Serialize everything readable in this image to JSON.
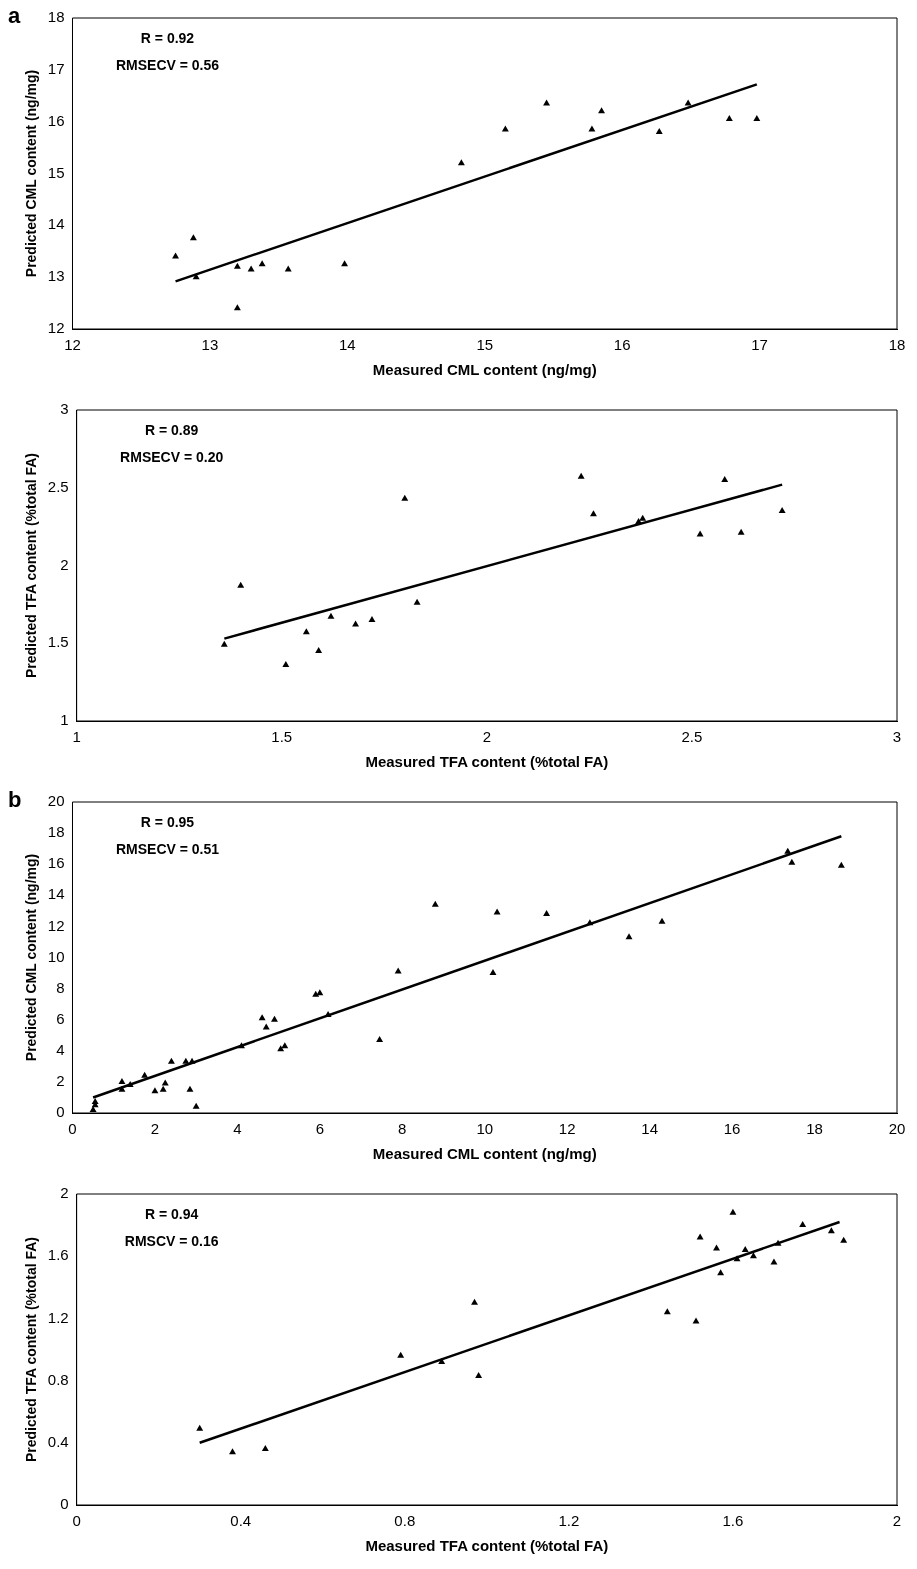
{
  "chart_data": [
    {
      "type": "scatter",
      "title": "a",
      "xlabel": "Measured CML content (ng/mg)",
      "ylabel": "Predicted CML content (ng/mg)",
      "annotations": [
        "R = 0.92",
        "RMSECV = 0.56"
      ],
      "xlim": [
        12,
        18
      ],
      "xticks": [
        12,
        13,
        14,
        15,
        16,
        17,
        18
      ],
      "ylim": [
        12,
        18
      ],
      "yticks": [
        12,
        13,
        14,
        15,
        16,
        17,
        18
      ],
      "grid": false,
      "legend": false,
      "series": [
        {
          "marker": "triangle",
          "color": "#000000",
          "x": [
            12.75,
            12.88,
            12.9,
            13.2,
            13.2,
            13.3,
            13.38,
            13.57,
            13.98,
            14.83,
            15.15,
            15.45,
            15.78,
            15.85,
            16.27,
            16.48,
            16.78,
            16.98
          ],
          "values": [
            13.4,
            13.75,
            13.0,
            13.2,
            12.4,
            13.15,
            13.25,
            13.15,
            13.25,
            15.2,
            15.85,
            16.35,
            15.85,
            16.2,
            15.8,
            16.35,
            16.05,
            16.05
          ]
        },
        {
          "type": "line",
          "marker": "none",
          "color": "#000000",
          "x": [
            12.75,
            16.98
          ],
          "values": [
            12.92,
            16.72
          ]
        }
      ]
    },
    {
      "type": "scatter",
      "xlabel": "Measured TFA content (%total FA)",
      "ylabel": "Predicted TFA content (%total FA)",
      "annotations": [
        "R = 0.89",
        "RMSECV = 0.20"
      ],
      "xlim": [
        1,
        3
      ],
      "xticks": [
        1,
        1.5,
        2,
        2.5,
        3
      ],
      "ylim": [
        1,
        3
      ],
      "yticks": [
        1,
        1.5,
        2,
        2.5,
        3
      ],
      "grid": false,
      "legend": false,
      "series": [
        {
          "marker": "triangle",
          "color": "#000000",
          "x": [
            1.36,
            1.4,
            1.51,
            1.56,
            1.59,
            1.62,
            1.68,
            1.72,
            1.8,
            1.83,
            2.23,
            2.26,
            2.37,
            2.38,
            2.52,
            2.58,
            2.62,
            2.72
          ],
          "values": [
            1.49,
            1.87,
            1.36,
            1.57,
            1.45,
            1.67,
            1.62,
            1.65,
            2.43,
            1.76,
            2.57,
            2.33,
            2.28,
            2.3,
            2.2,
            2.55,
            2.21,
            2.35
          ]
        },
        {
          "type": "line",
          "marker": "none",
          "color": "#000000",
          "x": [
            1.36,
            2.72
          ],
          "values": [
            1.53,
            2.52
          ]
        }
      ]
    },
    {
      "type": "scatter",
      "title": "b",
      "xlabel": "Measured CML content (ng/mg)",
      "ylabel": "Predicted CML content (ng/mg)",
      "annotations": [
        "R = 0.95",
        "RMSECV = 0.51"
      ],
      "xlim": [
        0,
        20
      ],
      "xticks": [
        0,
        2,
        4,
        6,
        8,
        10,
        12,
        14,
        16,
        18,
        20
      ],
      "ylim": [
        0,
        20
      ],
      "yticks": [
        0,
        2,
        4,
        6,
        8,
        10,
        12,
        14,
        16,
        18,
        20
      ],
      "grid": false,
      "legend": false,
      "series": [
        {
          "marker": "triangle",
          "color": "#000000",
          "x": [
            0.5,
            0.55,
            0.55,
            1.2,
            1.2,
            1.4,
            1.75,
            2.0,
            2.2,
            2.25,
            2.4,
            2.75,
            2.85,
            2.9,
            3.0,
            4.1,
            4.6,
            4.7,
            4.9,
            5.05,
            5.15,
            5.9,
            6.0,
            6.2,
            7.45,
            7.9,
            8.8,
            10.2,
            10.3,
            11.5,
            12.55,
            13.5,
            14.3,
            17.35,
            17.45,
            18.65
          ],
          "values": [
            0.2,
            0.5,
            0.7,
            1.5,
            2.0,
            1.8,
            2.4,
            1.4,
            1.5,
            1.9,
            3.3,
            3.3,
            1.5,
            3.3,
            0.4,
            4.3,
            6.1,
            5.5,
            6.0,
            4.1,
            4.3,
            7.6,
            7.7,
            6.3,
            4.7,
            9.1,
            13.4,
            9.0,
            12.9,
            12.8,
            12.2,
            11.3,
            12.3,
            16.8,
            16.1,
            15.9
          ]
        },
        {
          "type": "line",
          "marker": "none",
          "color": "#000000",
          "x": [
            0.5,
            18.65
          ],
          "values": [
            1.0,
            17.8
          ]
        }
      ]
    },
    {
      "type": "scatter",
      "xlabel": "Measured TFA content (%total FA)",
      "ylabel": "Predicted TFA content (%total FA)",
      "annotations": [
        "R = 0.94",
        "RMSCV = 0.16"
      ],
      "xlim": [
        0,
        2
      ],
      "xticks": [
        0,
        0.4,
        0.8,
        1.2,
        1.6,
        2
      ],
      "ylim": [
        0,
        2
      ],
      "yticks": [
        0,
        0.4,
        0.8,
        1.2,
        1.6,
        2
      ],
      "grid": false,
      "legend": false,
      "series": [
        {
          "marker": "triangle",
          "color": "#000000",
          "x": [
            0.3,
            0.38,
            0.46,
            0.79,
            0.89,
            0.97,
            0.98,
            1.44,
            1.51,
            1.52,
            1.56,
            1.57,
            1.6,
            1.61,
            1.63,
            1.65,
            1.7,
            1.71,
            1.77,
            1.84,
            1.87
          ],
          "values": [
            0.49,
            0.34,
            0.36,
            0.96,
            0.92,
            1.3,
            0.83,
            1.24,
            1.18,
            1.72,
            1.65,
            1.49,
            1.88,
            1.58,
            1.64,
            1.6,
            1.56,
            1.68,
            1.8,
            1.76,
            1.7
          ]
        },
        {
          "type": "line",
          "marker": "none",
          "color": "#000000",
          "x": [
            0.3,
            1.86
          ],
          "values": [
            0.4,
            1.82
          ]
        }
      ]
    }
  ]
}
